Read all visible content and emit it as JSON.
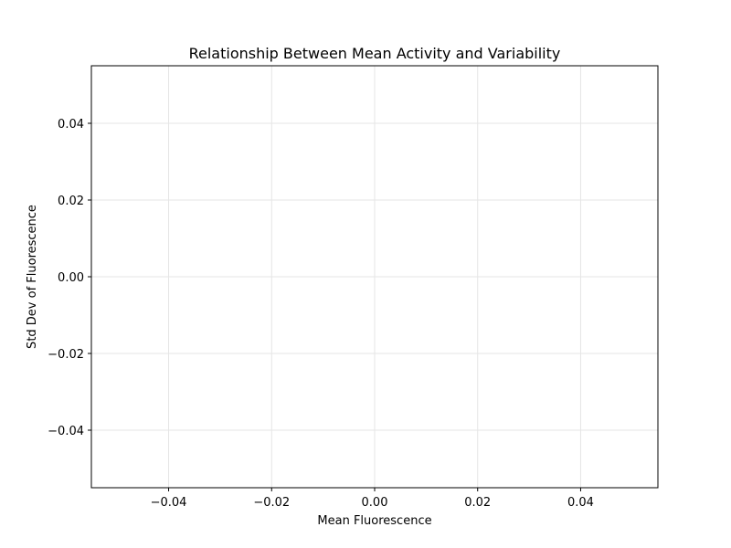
{
  "chart_data": {
    "type": "scatter",
    "title": "Relationship Between Mean Activity and Variability",
    "xlabel": "Mean Fluorescence",
    "ylabel": "Std Dev of Fluorescence",
    "xlim": [
      -0.055,
      0.055
    ],
    "ylim": [
      -0.055,
      0.055
    ],
    "x_ticks": [
      -0.04,
      -0.02,
      0.0,
      0.02,
      0.04
    ],
    "x_tick_labels": [
      "−0.04",
      "−0.02",
      "0.00",
      "0.02",
      "0.04"
    ],
    "y_ticks": [
      -0.04,
      -0.02,
      0.0,
      0.02,
      0.04
    ],
    "y_tick_labels": [
      "−0.04",
      "−0.02",
      "0.00",
      "0.02",
      "0.04"
    ],
    "grid": true,
    "x": [],
    "y": []
  },
  "colors": {
    "grid": "#e5e5e5",
    "axes": "#000000",
    "background": "#ffffff"
  }
}
